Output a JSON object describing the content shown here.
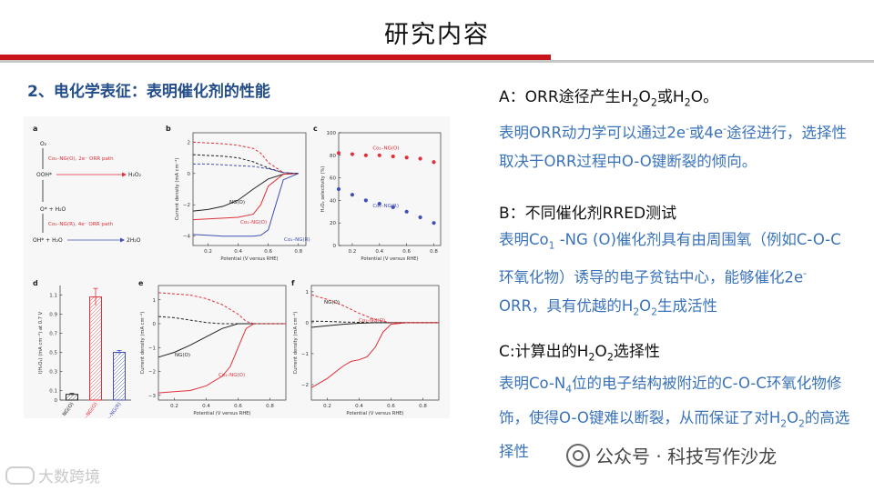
{
  "slide": {
    "title": "研究内容"
  },
  "section": {
    "heading": "2、电化学表征：表明催化剂的性能"
  },
  "blocks": {
    "a": {
      "title_parts": [
        "A：ORR途径产生H",
        "2",
        "O",
        "2",
        "或H",
        "2",
        "O。"
      ],
      "body_parts": [
        "表明ORR动力学可以通过2e",
        "-",
        "或4e",
        "-",
        "途径进行，选择性取决于ORR过程中O-O键断裂的倾向。"
      ]
    },
    "b": {
      "title": "B：不同催化剂RRED测试",
      "body_parts": [
        "表明Co",
        "1",
        " -NG (O)催化剂具有由周围氧（例如C-O-C环氧化物）诱导的电子贫钴中心，能够催化2e",
        "-",
        " ORR，具有优越的H",
        "2",
        "O",
        "2",
        "生成活性"
      ]
    },
    "c": {
      "title_parts": [
        "C:计算出的H",
        "2",
        "O",
        "2",
        "选择性"
      ],
      "body_parts": [
        "表明Co-N",
        "4",
        "位的电子结构被附近的C-O-C环氧化物修饰，使得O-O键难以断裂，从而保证了对H",
        "2",
        "O",
        "2",
        "的高选择性"
      ]
    }
  },
  "figure": {
    "panel_letters": [
      "a",
      "b",
      "c",
      "d",
      "e",
      "f"
    ],
    "scheme": {
      "o2": "O₂",
      "path_2e": "Co₁–NG(O), 2e⁻ ORR path",
      "ooh": "OOH*",
      "h2o2": "H₂O₂",
      "o_star": "O* + H₂O",
      "path_4e": "Co₁–NG(R), 4e⁻ ORR path",
      "oh_star": "OH* + H₂O",
      "h2o": "2H₂O"
    },
    "colors": {
      "ng": "#222222",
      "co_o": "#e0303a",
      "co_r": "#4050b5"
    }
  },
  "chart_data": [
    {
      "panel": "b",
      "type": "line",
      "xlabel": "Potential (V versus RHE)",
      "ylabel": "Current density (mA cm⁻²)",
      "xlim": [
        0.1,
        0.85
      ],
      "ylim": [
        -4.6,
        2.6
      ],
      "xticks": [
        "0.2",
        "0.4",
        "0.6",
        "0.8"
      ],
      "yticks": [
        "2",
        "0",
        "−2",
        "−4"
      ],
      "series": [
        {
          "name": "NG(O)",
          "style": "solid",
          "color": "#222222",
          "x": [
            0.1,
            0.2,
            0.3,
            0.4,
            0.5,
            0.6,
            0.7,
            0.8
          ],
          "y": [
            -2.4,
            -2.3,
            -2.1,
            -1.7,
            -1.0,
            -0.35,
            -0.05,
            0.0
          ]
        },
        {
          "name": "Co₁–NG(O)",
          "style": "solid",
          "color": "#e0303a",
          "x": [
            0.1,
            0.2,
            0.3,
            0.4,
            0.5,
            0.55,
            0.6,
            0.7,
            0.8
          ],
          "y": [
            -2.95,
            -2.9,
            -2.85,
            -2.8,
            -2.6,
            -2.0,
            -0.8,
            -0.05,
            0.0
          ]
        },
        {
          "name": "Co₁–NG(R)",
          "style": "solid",
          "color": "#4050b5",
          "x": [
            0.1,
            0.2,
            0.3,
            0.4,
            0.5,
            0.55,
            0.6,
            0.65,
            0.7,
            0.8
          ],
          "y": [
            -3.9,
            -3.95,
            -4.0,
            -4.0,
            -4.0,
            -3.95,
            -3.6,
            -2.0,
            -0.4,
            0.0
          ]
        },
        {
          "name": "",
          "style": "dashed",
          "color": "#222222",
          "x": [
            0.1,
            0.2,
            0.3,
            0.4,
            0.5,
            0.6,
            0.7,
            0.8
          ],
          "y": [
            1.2,
            1.15,
            1.1,
            1.0,
            0.75,
            0.35,
            0.05,
            0.0
          ]
        },
        {
          "name": "",
          "style": "dashed",
          "color": "#e0303a",
          "x": [
            0.1,
            0.2,
            0.3,
            0.4,
            0.5,
            0.55,
            0.6,
            0.7,
            0.8
          ],
          "y": [
            2.0,
            1.95,
            1.9,
            1.8,
            1.6,
            1.3,
            0.7,
            0.05,
            0.0
          ]
        },
        {
          "name": "",
          "style": "dashed",
          "color": "#4050b5",
          "x": [
            0.1,
            0.2,
            0.3,
            0.4,
            0.5,
            0.6,
            0.7,
            0.8
          ],
          "y": [
            0.6,
            0.6,
            0.55,
            0.5,
            0.45,
            0.3,
            0.05,
            0.0
          ]
        }
      ]
    },
    {
      "panel": "c",
      "type": "scatter",
      "xlabel": "Potential (V versus RHE)",
      "ylabel": "H₂O₂ selectivity (%)",
      "xlim": [
        0.1,
        0.85
      ],
      "ylim": [
        0,
        100
      ],
      "xticks": [
        "0.2",
        "0.4",
        "0.6",
        "0.8"
      ],
      "yticks": [
        "0",
        "20",
        "40",
        "60",
        "80",
        "100"
      ],
      "series": [
        {
          "name": "Co₁–NG(O)",
          "color": "#e0303a",
          "x": [
            0.1,
            0.2,
            0.3,
            0.4,
            0.5,
            0.6,
            0.7,
            0.8
          ],
          "y": [
            82,
            81,
            80,
            80,
            79,
            78,
            77,
            74
          ]
        },
        {
          "name": "Co₁–NG(R)",
          "color": "#4050b5",
          "x": [
            0.1,
            0.2,
            0.3,
            0.4,
            0.5,
            0.6,
            0.7,
            0.8
          ],
          "y": [
            50,
            45,
            40,
            37,
            34,
            30,
            25,
            20
          ]
        }
      ]
    },
    {
      "panel": "d",
      "type": "bar",
      "ylabel": "I(H₂O₂) (mA cm⁻²) at 0.7 V",
      "ylim": [
        0,
        1.2
      ],
      "yticks": [
        "0",
        "0.1",
        "0.3",
        "0.5",
        "0.7",
        "0.9",
        "1.1"
      ],
      "categories": [
        "NG(O)",
        "Co₁–NG(O)",
        "Co₁–NG(R)"
      ],
      "values": [
        0.06,
        1.08,
        0.5
      ],
      "errors": [
        0.01,
        0.09,
        0.02
      ],
      "colors": [
        "#222222",
        "#e0303a",
        "#4050b5"
      ]
    },
    {
      "panel": "e",
      "type": "line",
      "xlabel": "Potential (V versus RHE)",
      "ylabel": "Current density (mA cm⁻²)",
      "xlim": [
        0.1,
        0.9
      ],
      "ylim": [
        -3.2,
        1.6
      ],
      "xticks": [
        "0.2",
        "0.4",
        "0.6",
        "0.8"
      ],
      "yticks": [
        "1",
        "0",
        "−1",
        "−2",
        "−3"
      ],
      "series": [
        {
          "name": "NG(O)",
          "style": "solid",
          "color": "#222222",
          "x": [
            0.1,
            0.2,
            0.3,
            0.4,
            0.5,
            0.6,
            0.7,
            0.8,
            0.9
          ],
          "y": [
            -1.4,
            -1.2,
            -0.9,
            -0.55,
            -0.2,
            0.0,
            0.0,
            0.0,
            0.0
          ]
        },
        {
          "name": "Co₁–NG(O)",
          "style": "solid",
          "color": "#e0303a",
          "x": [
            0.1,
            0.2,
            0.3,
            0.4,
            0.5,
            0.55,
            0.6,
            0.65,
            0.7,
            0.8,
            0.9
          ],
          "y": [
            -2.9,
            -2.85,
            -2.8,
            -2.6,
            -2.2,
            -1.8,
            -1.0,
            -0.2,
            0.0,
            0.0,
            0.0
          ]
        },
        {
          "name": "",
          "style": "dashed",
          "color": "#222222",
          "x": [
            0.1,
            0.2,
            0.3,
            0.4,
            0.5,
            0.6,
            0.9
          ],
          "y": [
            0.3,
            0.25,
            0.15,
            0.05,
            0.0,
            0.0,
            0.0
          ]
        },
        {
          "name": "",
          "style": "dashed",
          "color": "#e0303a",
          "x": [
            0.1,
            0.2,
            0.3,
            0.4,
            0.5,
            0.6,
            0.65,
            0.7,
            0.9
          ],
          "y": [
            1.3,
            1.25,
            1.2,
            1.05,
            0.8,
            0.4,
            0.1,
            0.0,
            0.0
          ]
        }
      ]
    },
    {
      "panel": "f",
      "type": "line",
      "xlabel": "Potential (V versus RHE)",
      "ylabel": "Current density (mA cm⁻²)",
      "xlim": [
        0.1,
        0.9
      ],
      "ylim": [
        -2.5,
        1.2
      ],
      "xticks": [
        "0.2",
        "0.4",
        "0.6",
        "0.8"
      ],
      "yticks": [
        "1",
        "0",
        "−1",
        "−2"
      ],
      "series": [
        {
          "name": "NG(O)",
          "style": "solid",
          "color": "#222222",
          "x": [
            0.1,
            0.2,
            0.3,
            0.4,
            0.5,
            0.6,
            0.9
          ],
          "y": [
            -0.15,
            -0.1,
            -0.05,
            -0.02,
            0.0,
            0.0,
            0.0
          ]
        },
        {
          "name": "Co₁–NG(O)",
          "style": "solid",
          "color": "#e0303a",
          "x": [
            0.1,
            0.2,
            0.3,
            0.35,
            0.4,
            0.45,
            0.5,
            0.55,
            0.6,
            0.7,
            0.9
          ],
          "y": [
            -2.1,
            -1.8,
            -1.4,
            -1.25,
            -1.2,
            -1.1,
            -0.8,
            -0.3,
            -0.05,
            0.0,
            0.0
          ]
        },
        {
          "name": "",
          "style": "dashed",
          "color": "#222222",
          "x": [
            0.1,
            0.2,
            0.3,
            0.4,
            0.5,
            0.9
          ],
          "y": [
            0.05,
            0.04,
            0.02,
            0.01,
            0.0,
            0.0
          ]
        },
        {
          "name": "",
          "style": "dashed",
          "color": "#e0303a",
          "x": [
            0.1,
            0.2,
            0.3,
            0.4,
            0.5,
            0.6,
            0.9
          ],
          "y": [
            0.9,
            0.75,
            0.55,
            0.3,
            0.1,
            0.0,
            0.0
          ]
        }
      ]
    }
  ],
  "watermark": {
    "text": "公众号 · 科技写作沙龙"
  },
  "corner_logo": {
    "text": "大数跨境"
  }
}
